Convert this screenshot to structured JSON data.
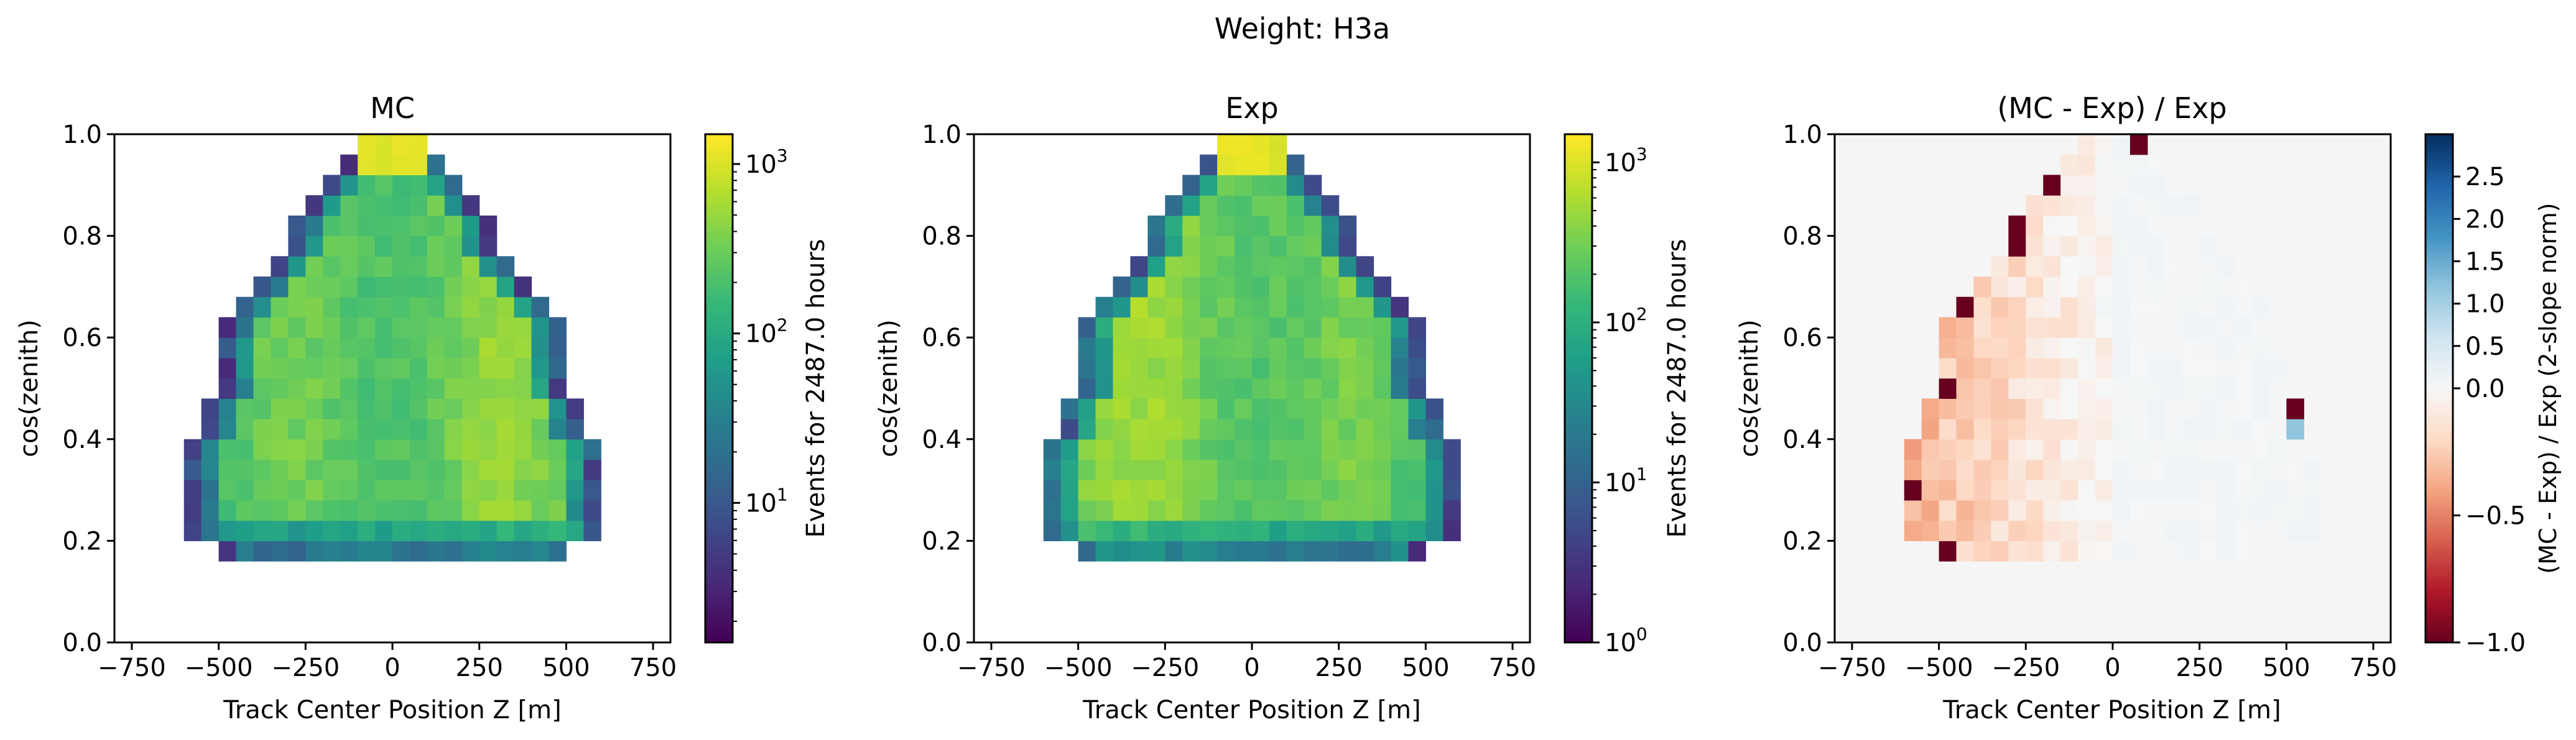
{
  "figure": {
    "suptitle": "Weight: H3a"
  },
  "chart_data": [
    {
      "type": "heatmap",
      "title": "MC",
      "xlabel": "Track Center Position Z [m]",
      "ylabel": "cos(zenith)",
      "xlim": [
        -800,
        800
      ],
      "ylim": [
        0.0,
        1.0
      ],
      "xticks": [
        "−750",
        "−500",
        "−250",
        "0",
        "250",
        "500",
        "750"
      ],
      "yticks": [
        "0.0",
        "0.2",
        "0.4",
        "0.6",
        "0.8",
        "1.0"
      ],
      "grid": false,
      "colormap": "viridis",
      "colorbar": {
        "label": "Events for 2487.0 hours",
        "scale": "log",
        "range": [
          1.5,
          1500
        ],
        "ticks": [
          {
            "base": "10",
            "exp": "1"
          },
          {
            "base": "10",
            "exp": "2"
          },
          {
            "base": "10",
            "exp": "3"
          }
        ]
      },
      "bins": {
        "x_edges_from": -600,
        "x_bin_width": 50,
        "y_bin_width": 0.04
      },
      "note_values": "estimated log10 counts per bin; bins empty outside the event envelope"
    },
    {
      "type": "heatmap",
      "title": "Exp",
      "xlabel": "Track Center Position Z [m]",
      "ylabel": "cos(zenith)",
      "xlim": [
        -800,
        800
      ],
      "ylim": [
        0.0,
        1.0
      ],
      "xticks": [
        "−750",
        "−500",
        "−250",
        "0",
        "250",
        "500",
        "750"
      ],
      "yticks": [
        "0.0",
        "0.2",
        "0.4",
        "0.6",
        "0.8",
        "1.0"
      ],
      "grid": false,
      "colormap": "viridis",
      "colorbar": {
        "label": "Events for 2487.0 hours",
        "scale": "log",
        "range": [
          1,
          1500
        ],
        "ticks": [
          {
            "base": "10",
            "exp": "0"
          },
          {
            "base": "10",
            "exp": "1"
          },
          {
            "base": "10",
            "exp": "2"
          },
          {
            "base": "10",
            "exp": "3"
          }
        ]
      }
    },
    {
      "type": "heatmap",
      "title": "(MC - Exp) / Exp",
      "xlabel": "Track Center Position Z [m]",
      "ylabel": "cos(zenith)",
      "xlim": [
        -800,
        800
      ],
      "ylim": [
        0.0,
        1.0
      ],
      "xticks": [
        "−750",
        "−500",
        "−250",
        "0",
        "250",
        "500",
        "750"
      ],
      "yticks": [
        "0.0",
        "0.2",
        "0.4",
        "0.6",
        "0.8",
        "1.0"
      ],
      "grid": false,
      "colormap": "RdBu (2-slope norm, center 0)",
      "colorbar": {
        "label": "(MC - Exp) / Exp (2-slope norm)",
        "range": [
          -1.0,
          3.0
        ],
        "center": 0.0,
        "ticks": [
          "−1.0",
          "−0.5",
          "0.0",
          "0.5",
          "1.0",
          "1.5",
          "2.0",
          "2.5"
        ]
      }
    }
  ]
}
